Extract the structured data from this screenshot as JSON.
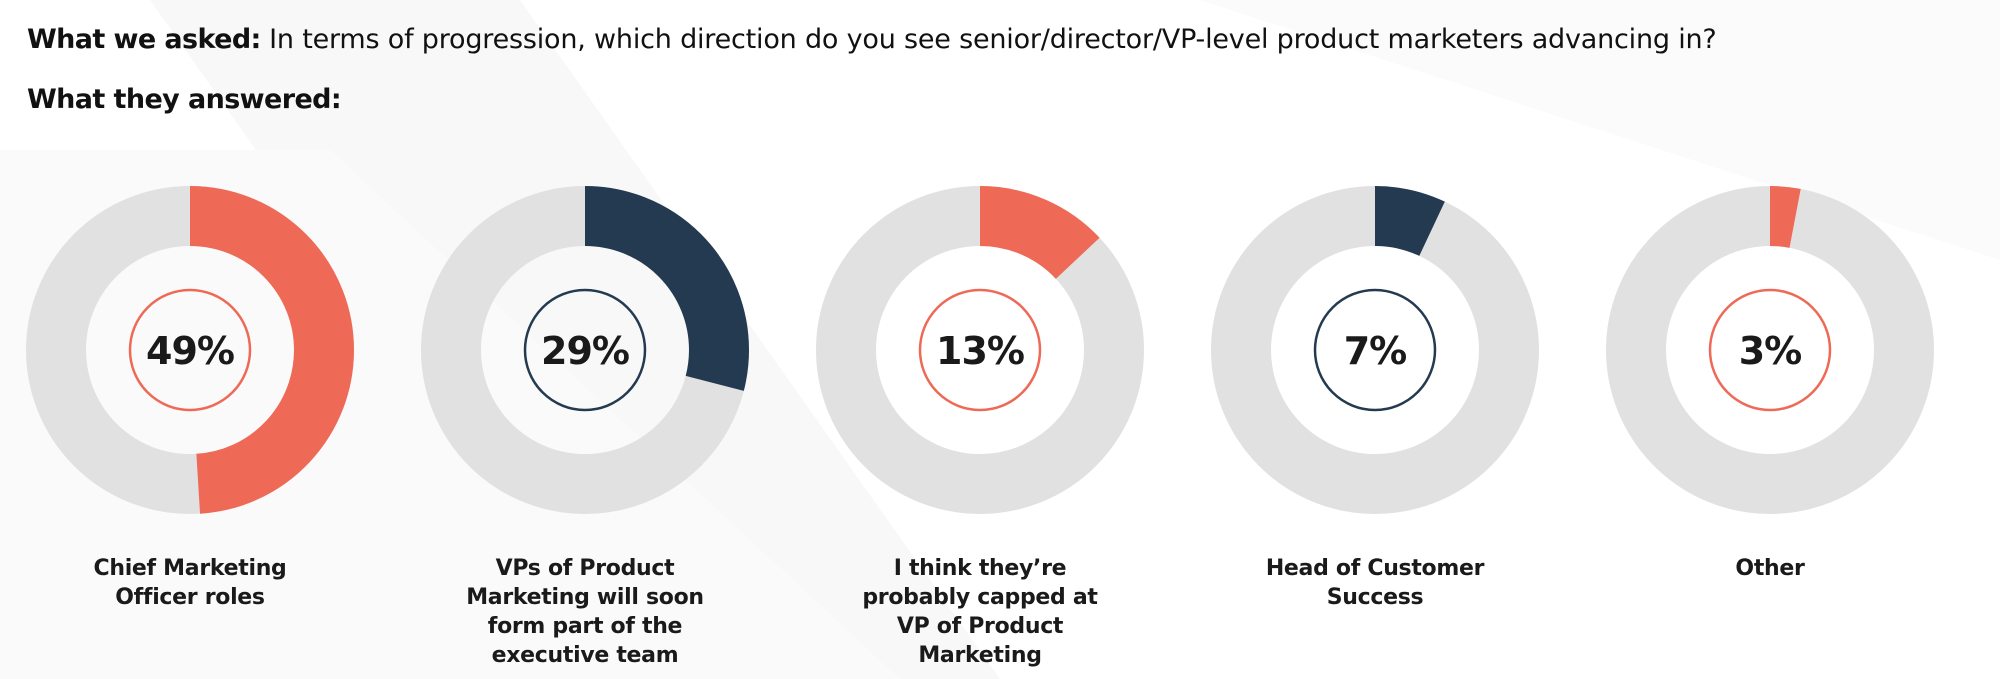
{
  "header": {
    "asked_label": "What we asked:",
    "question": "In terms of progression, which direction do you see senior/director/VP-level product marketers advancing in?",
    "answered_label": "What they answered:"
  },
  "colors": {
    "orange": "#ee6a57",
    "navy": "#233a50",
    "track": "#e1e1e1",
    "text": "#1a1a1a"
  },
  "chart_data": {
    "type": "pie",
    "style": "donut",
    "unit": "%",
    "categories": [
      "Chief Marketing Officer roles",
      "VPs of Product Marketing will soon form part of the executive team",
      "I think they’re probably capped at VP of Product Marketing",
      "Head of Customer Success",
      "Other"
    ],
    "values": [
      49,
      29,
      13,
      7,
      3
    ],
    "labels": [
      "49%",
      "29%",
      "13%",
      "7%",
      "3%"
    ],
    "slice_colors": [
      "#ee6a57",
      "#233a50",
      "#ee6a57",
      "#233a50",
      "#ee6a57"
    ]
  }
}
